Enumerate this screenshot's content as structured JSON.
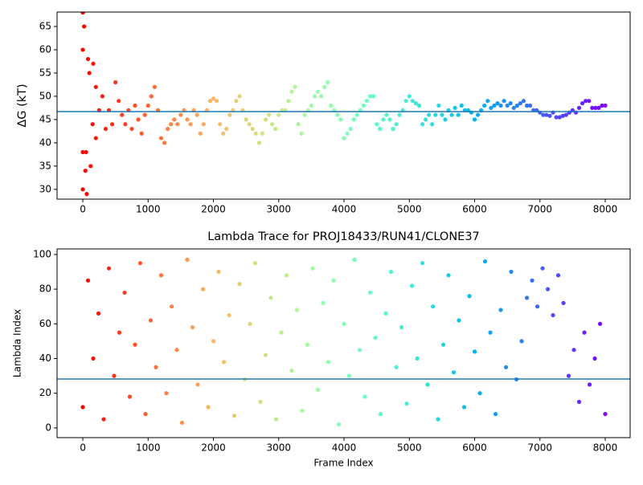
{
  "chart_data": [
    {
      "type": "scatter",
      "ylabel": "ΔG (kT)",
      "colormap": "rainbow_r",
      "hline": 46.7,
      "hline_color": "#1f77b4",
      "xlim": [
        -394,
        8381
      ],
      "ylim": [
        27.9,
        68.1
      ],
      "xticks": [
        0,
        1000,
        2000,
        3000,
        4000,
        5000,
        6000,
        7000,
        8000
      ],
      "yticks": [
        30,
        35,
        40,
        45,
        50,
        55,
        60,
        65
      ],
      "x": [
        0,
        50,
        100,
        150,
        200,
        250,
        300,
        350,
        400,
        450,
        500,
        550,
        600,
        650,
        700,
        750,
        800,
        850,
        900,
        950,
        1000,
        1050,
        1100,
        1150,
        1200,
        1250,
        1300,
        1350,
        1400,
        1450,
        1500,
        1550,
        1600,
        1650,
        1700,
        1750,
        1800,
        1850,
        1900,
        1950,
        2000,
        2050,
        2100,
        2150,
        2200,
        2250,
        2300,
        2350,
        2400,
        2450,
        2500,
        2550,
        2600,
        2650,
        2700,
        2750,
        2800,
        2850,
        2900,
        2950,
        3000,
        3050,
        3100,
        3150,
        3200,
        3250,
        3300,
        3350,
        3400,
        3450,
        3500,
        3550,
        3600,
        3650,
        3700,
        3750,
        3800,
        3850,
        3900,
        3950,
        4000,
        4050,
        4100,
        4150,
        4200,
        4250,
        4300,
        4350,
        4400,
        4450,
        4500,
        4550,
        4600,
        4650,
        4700,
        4750,
        4800,
        4850,
        4900,
        4950,
        5000,
        5050,
        5100,
        5150,
        5200,
        5250,
        5300,
        5350,
        5400,
        5450,
        5500,
        5550,
        5600,
        5650,
        5700,
        5750,
        5800,
        5850,
        5900,
        5950,
        6000,
        6050,
        6100,
        6150,
        6200,
        6250,
        6300,
        6350,
        6400,
        6450,
        6500,
        6550,
        6600,
        6650,
        6700,
        6750,
        6800,
        6850,
        6900,
        6950,
        7000,
        7050,
        7100,
        7150,
        7200,
        7250,
        7300,
        7350,
        7400,
        7450,
        7500,
        7550,
        7600,
        7650,
        7700,
        7750,
        7800,
        7850,
        7900,
        7950,
        8000,
        0,
        0,
        0,
        20,
        40,
        60,
        80,
        120,
        160,
        200
      ],
      "y": [
        60,
        38,
        55,
        44,
        52,
        47,
        50,
        43,
        47,
        44,
        53,
        49,
        46,
        44,
        47,
        43,
        48,
        45,
        42,
        46,
        48,
        50,
        52,
        47,
        41,
        40,
        43,
        44,
        45,
        44,
        46,
        47,
        45,
        44,
        47,
        46,
        42,
        44,
        47,
        49,
        49.5,
        49,
        44,
        42,
        43,
        46,
        47,
        49,
        50,
        47,
        45,
        44,
        43,
        42,
        40,
        42,
        45,
        46,
        44,
        43,
        46,
        47,
        47,
        49,
        51,
        52,
        44,
        42,
        46,
        47,
        48,
        50,
        51,
        50,
        52,
        53,
        48,
        47,
        46,
        45,
        41,
        42,
        43,
        45,
        46,
        47,
        48,
        49,
        50,
        50,
        44,
        43,
        45,
        46,
        45,
        43,
        44,
        46,
        47,
        49,
        50,
        49,
        48.5,
        48,
        44,
        45,
        46,
        44,
        46,
        48,
        46,
        45,
        47,
        46,
        47.5,
        46,
        48,
        47,
        47,
        46.5,
        45,
        46,
        47,
        48,
        49,
        47.5,
        48,
        48.5,
        48,
        49,
        48,
        48.5,
        47.5,
        48,
        48.5,
        49,
        48,
        48,
        47,
        47,
        46.5,
        46,
        46,
        45.8,
        46.5,
        45.5,
        45.5,
        45.8,
        46,
        46.5,
        47,
        46.5,
        47.5,
        48.5,
        49,
        49,
        47.5,
        47.5,
        47.5,
        48,
        48,
        30,
        68,
        38,
        65,
        34,
        29,
        58,
        35,
        57,
        41
      ]
    },
    {
      "type": "scatter",
      "title": "Lambda Trace for PROJ18433/RUN41/CLONE37",
      "xlabel": "Frame Index",
      "ylabel": "Lambda Index",
      "colormap": "rainbow_r",
      "hline": 28.2,
      "hline_color": "#1f77b4",
      "xlim": [
        -394,
        8381
      ],
      "ylim": [
        -5.6,
        103.2
      ],
      "xticks": [
        0,
        1000,
        2000,
        3000,
        4000,
        5000,
        6000,
        7000,
        8000
      ],
      "yticks": [
        0,
        20,
        40,
        60,
        80,
        100
      ],
      "x": [
        0,
        80,
        160,
        240,
        320,
        400,
        480,
        560,
        640,
        720,
        800,
        880,
        960,
        1040,
        1120,
        1200,
        1280,
        1360,
        1440,
        1520,
        1600,
        1680,
        1760,
        1840,
        1920,
        2000,
        2080,
        2160,
        2240,
        2320,
        2400,
        2480,
        2560,
        2640,
        2720,
        2800,
        2880,
        2960,
        3040,
        3120,
        3200,
        3280,
        3360,
        3440,
        3520,
        3600,
        3680,
        3760,
        3840,
        3920,
        4000,
        4080,
        4160,
        4240,
        4320,
        4400,
        4480,
        4560,
        4640,
        4720,
        4800,
        4880,
        4960,
        5040,
        5120,
        5200,
        5280,
        5360,
        5440,
        5520,
        5600,
        5680,
        5760,
        5840,
        5920,
        6000,
        6080,
        6160,
        6240,
        6320,
        6400,
        6480,
        6560,
        6640,
        6720,
        6800,
        6880,
        6960,
        7040,
        7120,
        7200,
        7280,
        7360,
        7440,
        7520,
        7600,
        7680,
        7760,
        7840,
        7920,
        8000
      ],
      "y": [
        12,
        85,
        40,
        66,
        5,
        92,
        30,
        55,
        78,
        18,
        48,
        95,
        8,
        62,
        35,
        88,
        20,
        70,
        45,
        3,
        97,
        58,
        25,
        80,
        12,
        50,
        90,
        38,
        65,
        7,
        83,
        28,
        60,
        95,
        15,
        42,
        75,
        5,
        55,
        88,
        33,
        68,
        10,
        48,
        92,
        22,
        72,
        38,
        85,
        2,
        60,
        30,
        97,
        45,
        18,
        78,
        52,
        8,
        66,
        90,
        35,
        58,
        14,
        82,
        40,
        95,
        25,
        70,
        5,
        48,
        88,
        32,
        62,
        12,
        76,
        44,
        20,
        96,
        55,
        8,
        68,
        35,
        90,
        28,
        50,
        75,
        85,
        70,
        92,
        80,
        65,
        88,
        72,
        30,
        45,
        15,
        55,
        25,
        40,
        60,
        8
      ]
    }
  ]
}
